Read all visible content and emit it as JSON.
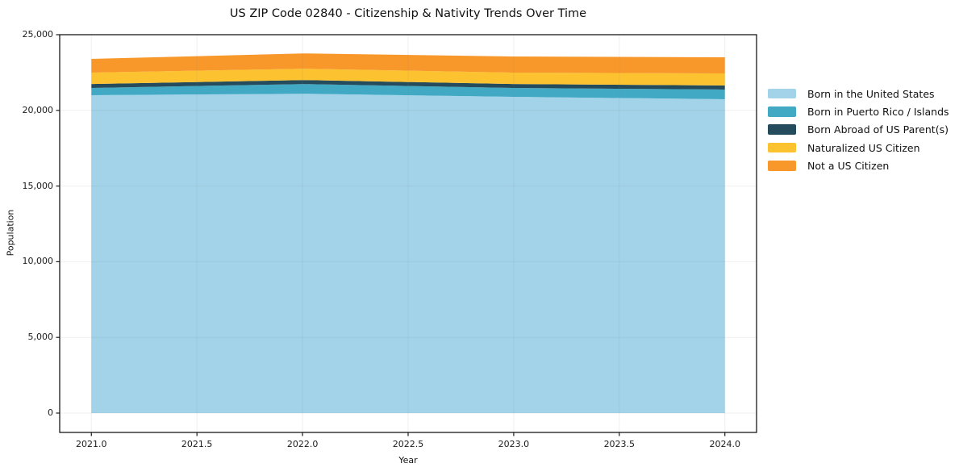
{
  "chart_data": {
    "type": "area",
    "stacked": true,
    "title": "US ZIP Code 02840 - Citizenship & Nativity Trends Over Time",
    "xlabel": "Year",
    "ylabel": "Population",
    "x": [
      2021,
      2022,
      2023,
      2024
    ],
    "series": [
      {
        "name": "Born in the United States",
        "color": "#a2d3e9",
        "values": [
          21000,
          21100,
          20895,
          20735
        ]
      },
      {
        "name": "Born in Puerto Rico / Islands",
        "color": "#41a9c4",
        "values": [
          480,
          640,
          585,
          640
        ]
      },
      {
        "name": "Born Abroad of US Parent(s)",
        "color": "#254c5c",
        "values": [
          265,
          265,
          265,
          265
        ]
      },
      {
        "name": "Naturalized US Citizen",
        "color": "#fcc22f",
        "values": [
          750,
          745,
          750,
          800
        ]
      },
      {
        "name": "Not a US Citizen",
        "color": "#f8982a",
        "values": [
          905,
          1015,
          1065,
          1065
        ]
      }
    ],
    "totals": [
      23400,
      23765,
      23560,
      23505
    ],
    "xlim": [
      2020.85,
      2024.15
    ],
    "ylim": [
      -1279,
      25000
    ],
    "x_ticks": [
      {
        "v": 2021.0,
        "label": "2021.0"
      },
      {
        "v": 2021.5,
        "label": "2021.5"
      },
      {
        "v": 2022.0,
        "label": "2022.0"
      },
      {
        "v": 2022.5,
        "label": "2022.5"
      },
      {
        "v": 2023.0,
        "label": "2023.0"
      },
      {
        "v": 2023.5,
        "label": "2023.5"
      },
      {
        "v": 2024.0,
        "label": "2024.0"
      }
    ],
    "y_ticks": [
      {
        "v": 0,
        "label": "0"
      },
      {
        "v": 5000,
        "label": "5,000"
      },
      {
        "v": 10000,
        "label": "10,000"
      },
      {
        "v": 15000,
        "label": "15,000"
      },
      {
        "v": 20000,
        "label": "20,000"
      },
      {
        "v": 25000,
        "label": "25,000"
      }
    ],
    "grid": true,
    "legend_position": "right",
    "colors": {
      "background": "#ffffff",
      "spine": "#1a1a1a",
      "gridline": "rgba(130,130,130,0.13)",
      "text": "#111111"
    }
  }
}
